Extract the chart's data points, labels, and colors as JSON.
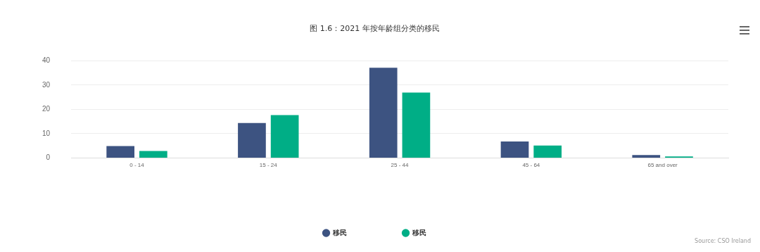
{
  "chart_data": {
    "type": "bar",
    "title": "图 1.6：2021 年按年龄组分类的移民",
    "categories": [
      "0 - 14",
      "15 - 24",
      "25 - 44",
      "45 - 64",
      "65 and over"
    ],
    "series": [
      {
        "name": "移民",
        "color": "#3d5381",
        "values": [
          4.9,
          14.4,
          37.1,
          6.8,
          1.2
        ]
      },
      {
        "name": "移民",
        "color": "#00ae86",
        "values": [
          2.9,
          17.6,
          26.9,
          5.1,
          0.6
        ]
      }
    ],
    "ylim": [
      0,
      40
    ],
    "yticks": [
      0,
      10,
      20,
      30,
      40
    ],
    "grid": "y",
    "legend": "bottom",
    "annotations": [
      "Source: CSO Ireland"
    ]
  }
}
